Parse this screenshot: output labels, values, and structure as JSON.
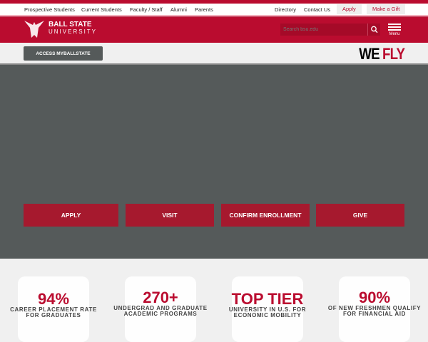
{
  "utility_nav": {
    "links": [
      "Prospective Students",
      "Current Students",
      "Faculty / Staff",
      "Alumni",
      "Parents",
      "Directory",
      "Contact Us"
    ],
    "apply": "Apply",
    "gift": "Make a Gift"
  },
  "header": {
    "brand_line1": "BALL STATE",
    "brand_line2": "UNIVERSITY",
    "search_placeholder": "Search bsu.edu",
    "menu_label": "Menu"
  },
  "subbar": {
    "access": "ACCESS MYBALLSTATE",
    "tagline_we": "WE",
    "tagline_fly": "FLY"
  },
  "hero": {
    "buttons": [
      "APPLY",
      "VISIT",
      "CONFIRM ENROLLMENT",
      "GIVE"
    ]
  },
  "stats": [
    {
      "value": "94%",
      "label": "CAREER PLACEMENT RATE FOR GRADUATES",
      "icon": "graduation-cap-icon"
    },
    {
      "value": "270+",
      "label": "UNDERGRAD AND GRADUATE ACADEMIC PROGRAMS",
      "icon": "building-icon"
    },
    {
      "value": "TOP TIER",
      "label": "UNIVERSITY IN U.S. FOR ECONOMIC MOBILITY",
      "icon": "chart-icon"
    },
    {
      "value": "90%",
      "label": "OF NEW FRESHMEN QUALIFY FOR FINANCIAL AID",
      "icon": "money-hand-icon"
    }
  ],
  "colors": {
    "brand": "#ba0c2f",
    "cta": "#a6192e",
    "hero": "#555a5a"
  }
}
